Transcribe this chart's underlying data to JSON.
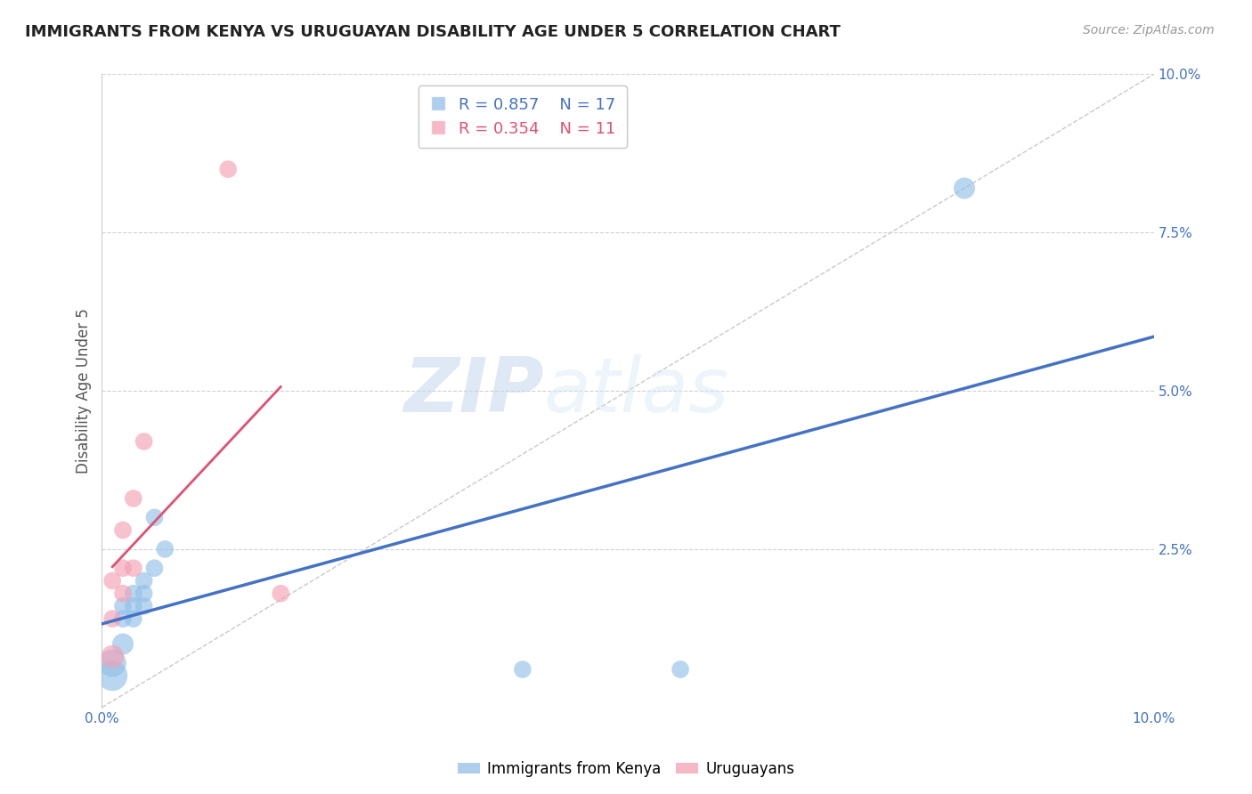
{
  "title": "IMMIGRANTS FROM KENYA VS URUGUAYAN DISABILITY AGE UNDER 5 CORRELATION CHART",
  "source": "Source: ZipAtlas.com",
  "ylabel": "Disability Age Under 5",
  "legend_label1": "Immigrants from Kenya",
  "legend_label2": "Uruguayans",
  "r1": "0.857",
  "n1": "17",
  "r2": "0.354",
  "n2": "11",
  "xlim": [
    0.0,
    0.1
  ],
  "ylim": [
    0.0,
    0.1
  ],
  "color_kenya": "#92C0E8",
  "color_uruguay": "#F4A0B5",
  "line_color_kenya": "#4472C4",
  "line_color_uruguay": "#E05070",
  "diag_color": "#C8C8D0",
  "watermark_zip": "ZIP",
  "watermark_atlas": "atlas",
  "kenya_points": [
    [
      0.001,
      0.005
    ],
    [
      0.001,
      0.007
    ],
    [
      0.002,
      0.01
    ],
    [
      0.002,
      0.014
    ],
    [
      0.002,
      0.016
    ],
    [
      0.003,
      0.014
    ],
    [
      0.003,
      0.016
    ],
    [
      0.003,
      0.018
    ],
    [
      0.004,
      0.016
    ],
    [
      0.004,
      0.018
    ],
    [
      0.004,
      0.02
    ],
    [
      0.005,
      0.022
    ],
    [
      0.005,
      0.03
    ],
    [
      0.006,
      0.025
    ],
    [
      0.04,
      0.006
    ],
    [
      0.055,
      0.006
    ],
    [
      0.082,
      0.082
    ]
  ],
  "kenya_sizes": [
    600,
    500,
    300,
    200,
    200,
    200,
    200,
    200,
    200,
    200,
    200,
    200,
    200,
    200,
    200,
    200,
    300
  ],
  "uruguay_points": [
    [
      0.001,
      0.008
    ],
    [
      0.001,
      0.014
    ],
    [
      0.001,
      0.02
    ],
    [
      0.002,
      0.018
    ],
    [
      0.002,
      0.022
    ],
    [
      0.002,
      0.028
    ],
    [
      0.003,
      0.022
    ],
    [
      0.003,
      0.033
    ],
    [
      0.004,
      0.042
    ],
    [
      0.017,
      0.018
    ],
    [
      0.012,
      0.085
    ]
  ],
  "uruguay_sizes": [
    350,
    200,
    200,
    200,
    200,
    200,
    200,
    200,
    200,
    200,
    200
  ]
}
